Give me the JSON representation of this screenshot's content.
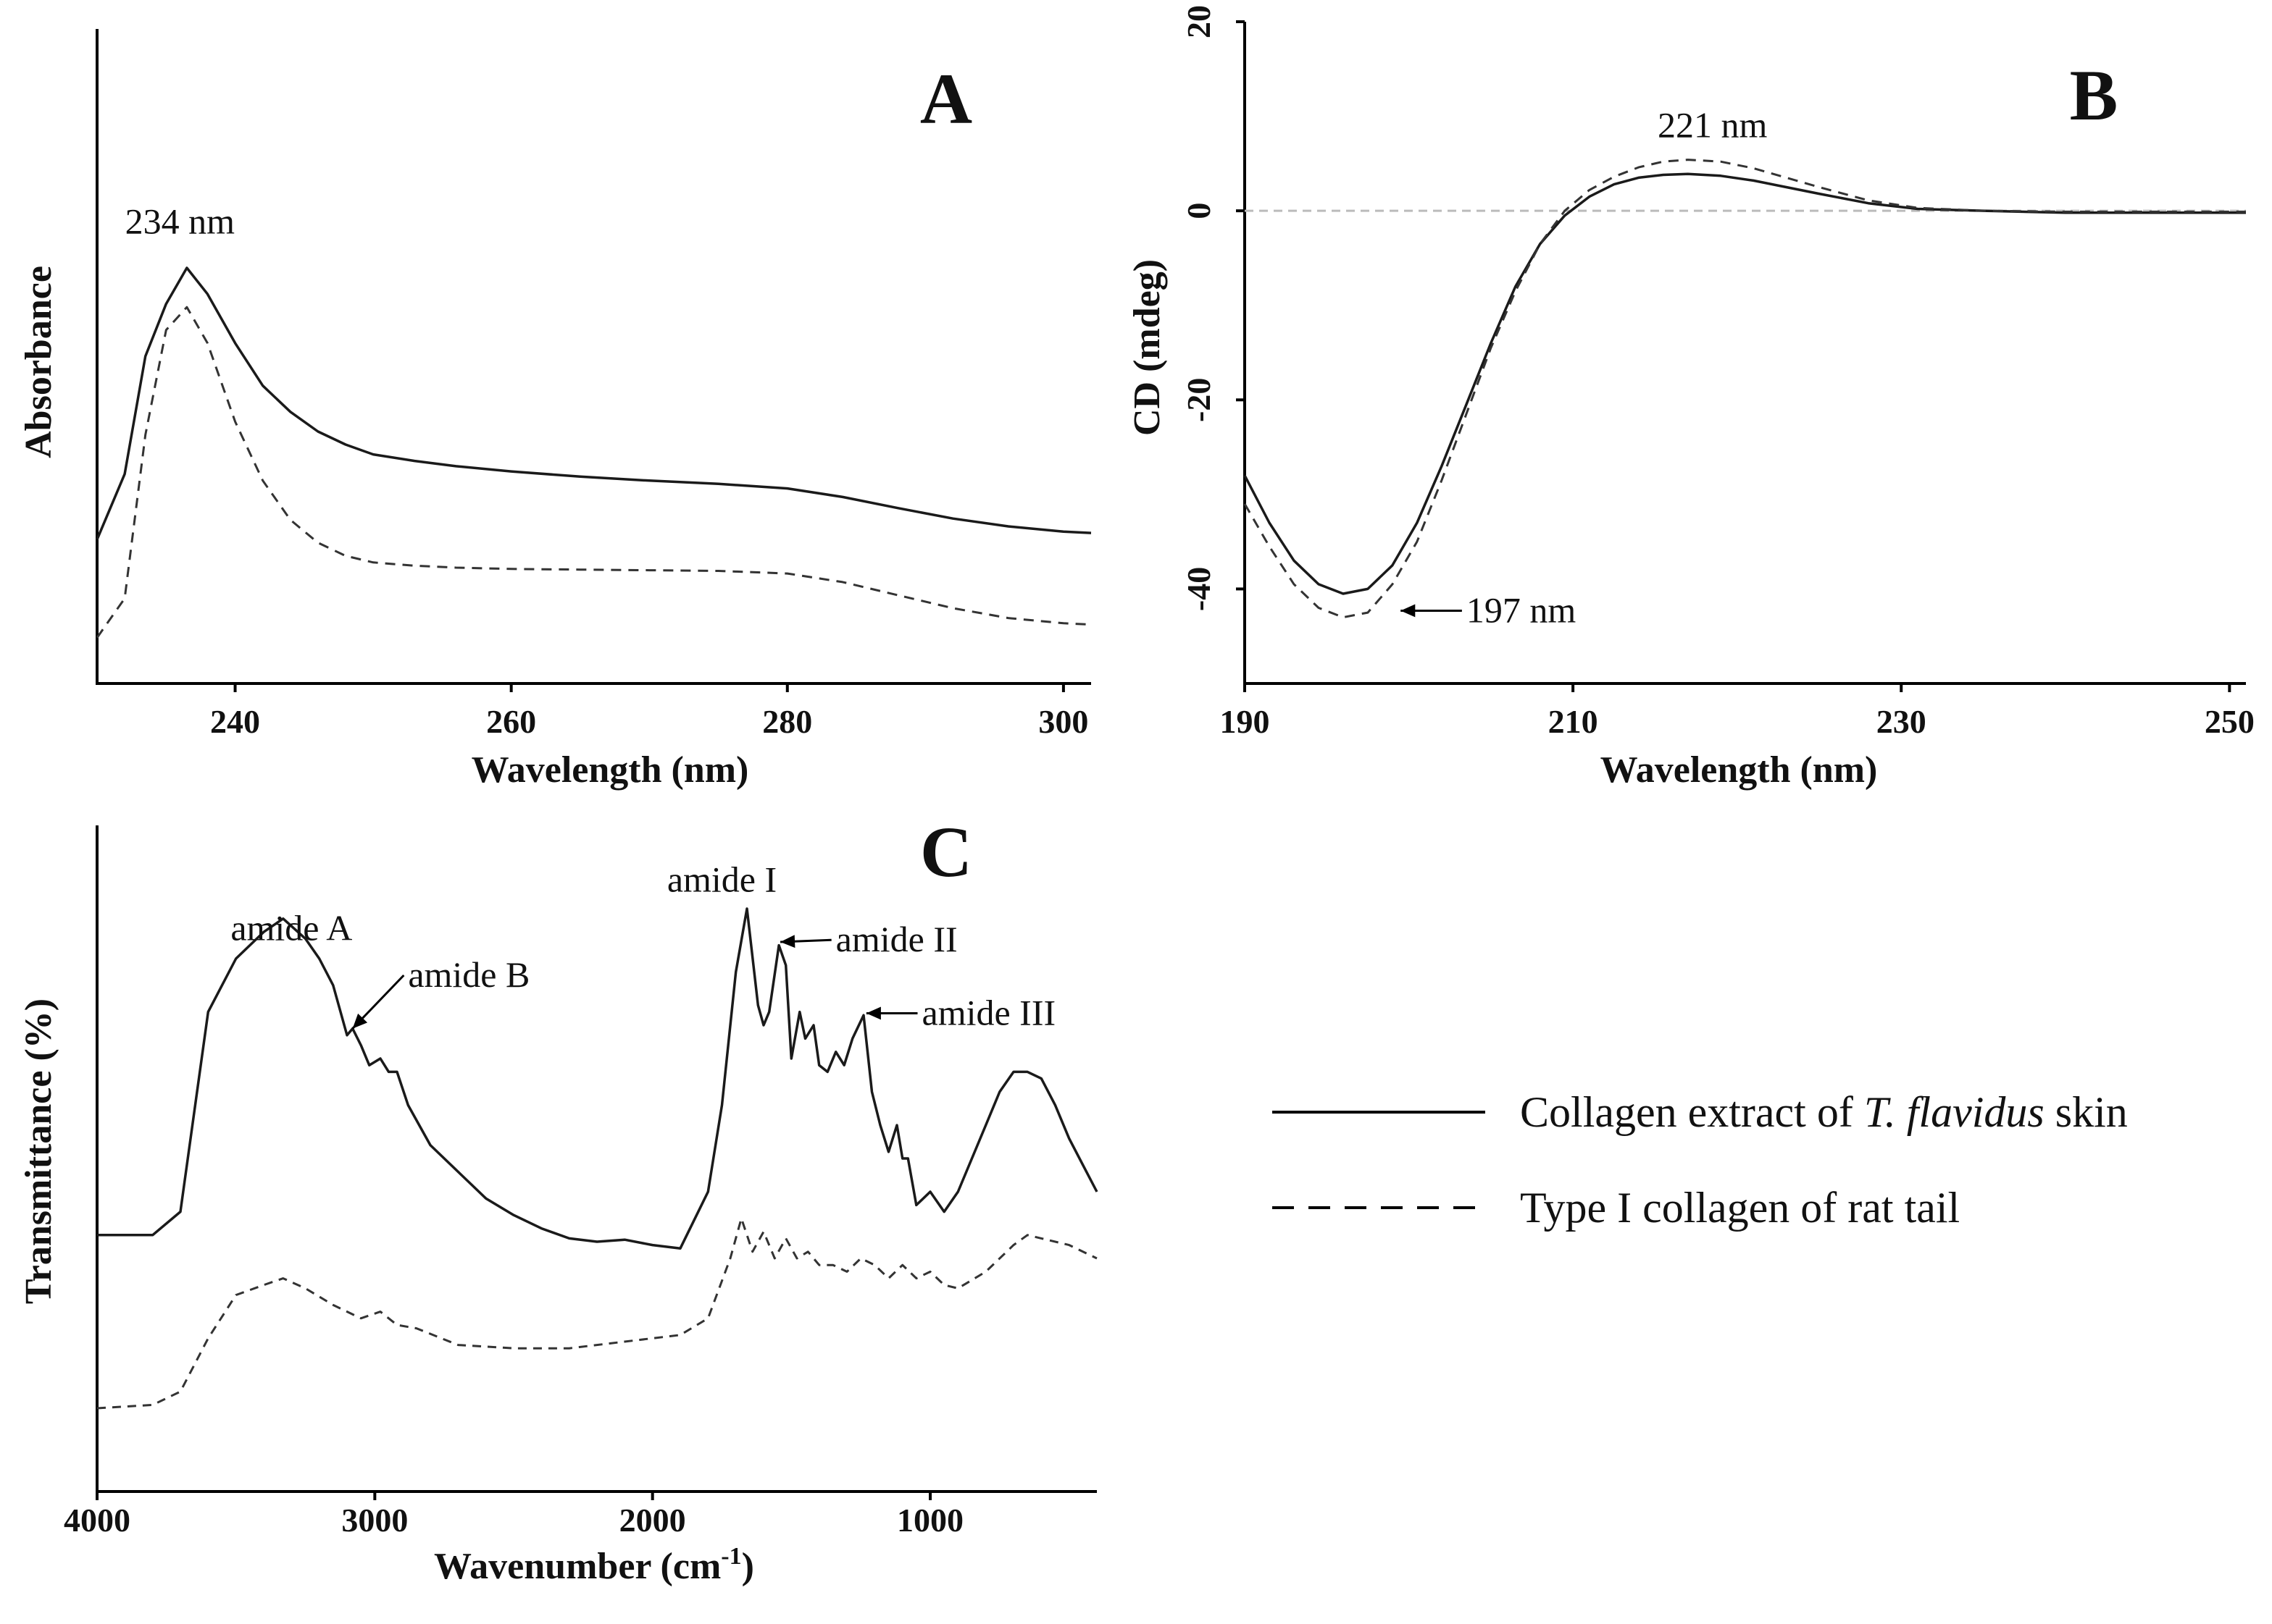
{
  "colors": {
    "solid": "#1a1a1a",
    "dashed": "#333333",
    "zeroline": "#bbbbbb"
  },
  "legend": [
    {
      "style": "solid",
      "parts": [
        {
          "text": "Collagen extract of "
        },
        {
          "text": "T. flavidus",
          "italic": true
        },
        {
          "text": " skin"
        }
      ]
    },
    {
      "style": "dashed",
      "parts": [
        {
          "text": "Type I collagen of rat tail"
        }
      ]
    }
  ],
  "chart_data": [
    {
      "panel": "A",
      "type": "line",
      "xlabel": "Wavelength (nm)",
      "ylabel": "Absorbance",
      "xlim": [
        230,
        302
      ],
      "ylim": [
        0,
        1
      ],
      "xticks": [
        240,
        260,
        280,
        300
      ],
      "yticks": [],
      "annotations": [
        {
          "text": "234 nm",
          "x": 236,
          "y": 0.705
        }
      ],
      "series": [
        {
          "name": "Collagen extract of T. flavidus skin",
          "style": "solid",
          "x": [
            230,
            232,
            233.5,
            235,
            236.5,
            238,
            240,
            242,
            244,
            246,
            248,
            250,
            253,
            256,
            260,
            265,
            270,
            275,
            280,
            284,
            288,
            292,
            296,
            300,
            302
          ],
          "y": [
            0.22,
            0.32,
            0.5,
            0.58,
            0.635,
            0.595,
            0.52,
            0.455,
            0.415,
            0.385,
            0.365,
            0.35,
            0.34,
            0.332,
            0.324,
            0.316,
            0.31,
            0.305,
            0.298,
            0.285,
            0.268,
            0.252,
            0.24,
            0.232,
            0.23
          ]
        },
        {
          "name": "Type I collagen of rat tail",
          "style": "dashed",
          "x": [
            230,
            232,
            233.5,
            235,
            236.5,
            238,
            240,
            242,
            244,
            246,
            248,
            250,
            253,
            256,
            260,
            265,
            270,
            275,
            280,
            284,
            288,
            292,
            296,
            300,
            302
          ],
          "y": [
            0.07,
            0.13,
            0.38,
            0.54,
            0.575,
            0.52,
            0.4,
            0.31,
            0.25,
            0.215,
            0.195,
            0.185,
            0.18,
            0.177,
            0.175,
            0.174,
            0.173,
            0.172,
            0.168,
            0.155,
            0.135,
            0.115,
            0.1,
            0.092,
            0.09
          ]
        }
      ]
    },
    {
      "panel": "B",
      "type": "line",
      "xlabel": "Wavelength (nm)",
      "ylabel": "CD (mdeg)",
      "xlim": [
        190,
        251
      ],
      "ylim": [
        -50,
        20
      ],
      "xticks": [
        190,
        210,
        230,
        250
      ],
      "yticks": [
        -40,
        -20,
        0,
        20
      ],
      "zero_line": true,
      "annotations": [
        {
          "text": "221 nm",
          "x": 218.5,
          "y": 9
        },
        {
          "text": "197 nm",
          "x": 203.5,
          "y": -42.3,
          "arrow_to": [
            199.5,
            -42.3
          ]
        }
      ],
      "series": [
        {
          "name": "Collagen extract of T. flavidus skin",
          "style": "solid",
          "x": [
            190,
            191.5,
            193,
            194.5,
            196,
            197.5,
            199,
            200.5,
            202,
            203.5,
            205,
            206.5,
            208,
            209.5,
            211,
            212.5,
            214,
            215.5,
            217,
            219,
            221,
            223,
            225,
            228,
            231,
            235,
            240,
            245,
            251
          ],
          "y": [
            -28,
            -33,
            -37,
            -39.5,
            -40.5,
            -40,
            -37.5,
            -33,
            -27,
            -20.5,
            -14,
            -8,
            -3.5,
            -0.5,
            1.5,
            2.8,
            3.5,
            3.8,
            3.9,
            3.7,
            3.2,
            2.5,
            1.8,
            0.8,
            0.2,
            0,
            -0.2,
            -0.2,
            -0.2
          ]
        },
        {
          "name": "Type I collagen of rat tail",
          "style": "dashed",
          "x": [
            190,
            191.5,
            193,
            194.5,
            196,
            197.5,
            199,
            200.5,
            202,
            203.5,
            205,
            206.5,
            208,
            209.5,
            211,
            212.5,
            214,
            215.5,
            217,
            219,
            221,
            223,
            225,
            228,
            231,
            235,
            240,
            245,
            251
          ],
          "y": [
            -31,
            -35.5,
            -39.5,
            -42,
            -43,
            -42.5,
            -39.5,
            -35,
            -28.5,
            -21.5,
            -14.5,
            -8.5,
            -3.5,
            0,
            2.2,
            3.6,
            4.6,
            5.2,
            5.4,
            5.2,
            4.5,
            3.5,
            2.5,
            1.1,
            0.3,
            0,
            -0.1,
            -0.1,
            -0.1
          ]
        }
      ]
    },
    {
      "panel": "C",
      "type": "line",
      "xlabel": "Wavenumber (cm-1)",
      "xlabel_main": "Wavenumber  (cm",
      "xlabel_sup": "-1",
      "xlabel_close": ")",
      "ylabel": "Transmittance (%)",
      "xlim": [
        4000,
        400
      ],
      "ylim": [
        0,
        100
      ],
      "xticks": [
        4000,
        3000,
        2000,
        1000
      ],
      "yticks": [],
      "annotations": [
        {
          "text": "amide A",
          "x": 3300,
          "y": 84.5
        },
        {
          "text": "amide B",
          "x": 2880,
          "y": 77.5,
          "arrow_to": [
            3080,
            69.5
          ]
        },
        {
          "text": "amide I",
          "x": 1750,
          "y": 91.8
        },
        {
          "text": "amide II",
          "x": 1340,
          "y": 82.8,
          "arrow_to": [
            1540,
            82.5
          ]
        },
        {
          "text": "amide III",
          "x": 1030,
          "y": 71.8,
          "arrow_to": [
            1230,
            71.8
          ]
        }
      ],
      "series": [
        {
          "name": "Collagen extract of T. flavidus skin",
          "style": "solid",
          "x": [
            4000,
            3800,
            3700,
            3600,
            3500,
            3400,
            3330,
            3250,
            3200,
            3150,
            3100,
            3080,
            3050,
            3020,
            2980,
            2950,
            2920,
            2880,
            2800,
            2700,
            2600,
            2500,
            2400,
            2300,
            2200,
            2100,
            2000,
            1900,
            1800,
            1750,
            1700,
            1660,
            1620,
            1600,
            1580,
            1545,
            1520,
            1500,
            1470,
            1450,
            1420,
            1400,
            1370,
            1340,
            1310,
            1280,
            1240,
            1210,
            1180,
            1150,
            1120,
            1100,
            1080,
            1050,
            1000,
            950,
            900,
            850,
            800,
            750,
            700,
            650,
            600,
            550,
            500,
            450,
            400
          ],
          "y": [
            38.5,
            38.5,
            42,
            72,
            80,
            84,
            86,
            83,
            80,
            76,
            68.5,
            69.5,
            67,
            64,
            65,
            63,
            63,
            58,
            52,
            48,
            44,
            41.5,
            39.5,
            38,
            37.5,
            37.8,
            37,
            36.5,
            45,
            58,
            78,
            87.5,
            73,
            70,
            72,
            82,
            79,
            65,
            72,
            68,
            70,
            64,
            63,
            66,
            64,
            68,
            71.5,
            60,
            55,
            51,
            55,
            50,
            50,
            43,
            45,
            42,
            45,
            50,
            55,
            60,
            63,
            63,
            62,
            58,
            53,
            49,
            45
          ]
        },
        {
          "name": "Type I collagen of rat tail",
          "style": "dashed",
          "x": [
            4000,
            3800,
            3700,
            3600,
            3500,
            3400,
            3330,
            3250,
            3150,
            3050,
            2980,
            2920,
            2850,
            2700,
            2500,
            2300,
            2100,
            1900,
            1800,
            1720,
            1680,
            1640,
            1600,
            1560,
            1520,
            1480,
            1440,
            1400,
            1350,
            1300,
            1250,
            1200,
            1150,
            1100,
            1050,
            1000,
            950,
            900,
            800,
            700,
            650,
            600,
            500,
            400
          ],
          "y": [
            12.5,
            13,
            15,
            23,
            29.5,
            31,
            32,
            30.5,
            28,
            26,
            27,
            25,
            24.5,
            22,
            21.5,
            21.5,
            22.5,
            23.5,
            26,
            35,
            41,
            36,
            39,
            35,
            38,
            35,
            36,
            34,
            34,
            33,
            35,
            34,
            32,
            34,
            32,
            33,
            31,
            30.5,
            33,
            37,
            38.5,
            38,
            37,
            35
          ]
        }
      ]
    }
  ]
}
